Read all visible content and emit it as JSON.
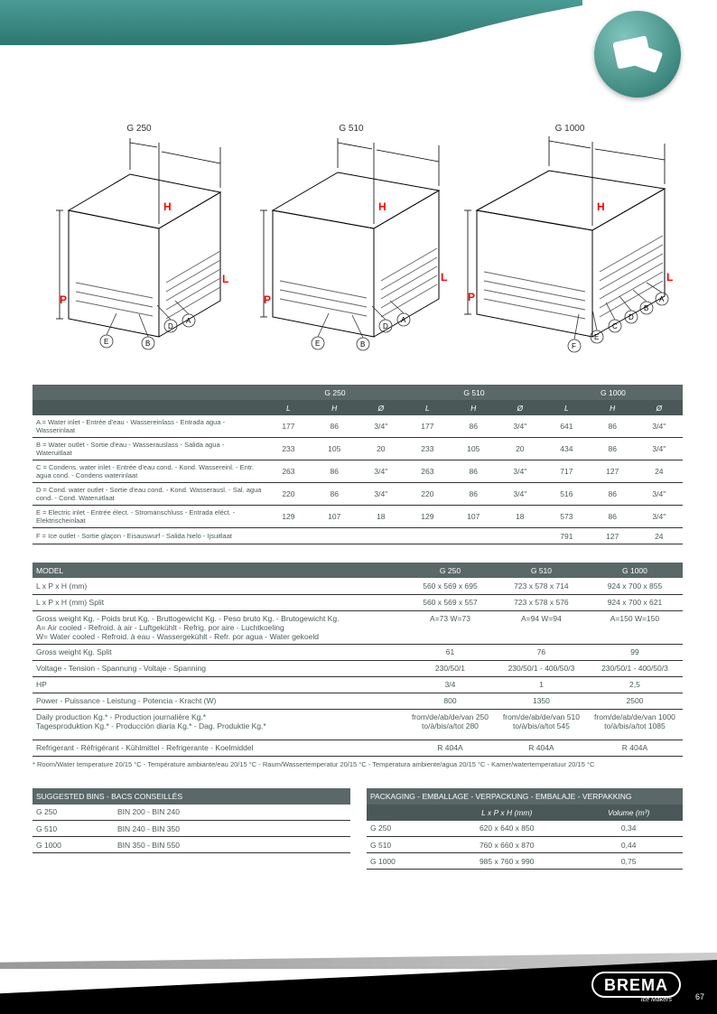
{
  "header": {
    "badge_alt": "ice"
  },
  "diagrams": {
    "labels": [
      "G 250",
      "G 510",
      "G 1000"
    ],
    "letters": {
      "H": "H",
      "L": "L",
      "P": "P"
    }
  },
  "table1": {
    "head_models": [
      "G 250",
      "G 510",
      "G 1000"
    ],
    "sub": [
      "L",
      "H",
      "Ø",
      "L",
      "H",
      "Ø",
      "L",
      "H",
      "Ø"
    ],
    "rows": [
      {
        "label": "A = Water inlet - Entrée d'eau - Wassereinlass - Entrada agua - Wasserinlaat",
        "v": [
          "177",
          "86",
          "3/4\"",
          "177",
          "86",
          "3/4\"",
          "641",
          "86",
          "3/4\""
        ]
      },
      {
        "label": "B = Water outlet - Sortie d'eau - Wasserauslass - Salida agua - Wateruitlaat",
        "v": [
          "233",
          "105",
          "20",
          "233",
          "105",
          "20",
          "434",
          "86",
          "3/4\""
        ]
      },
      {
        "label": "C = Condens. water inlet - Entrée d'eau cond. - Kond. Wassereinl. - Entr. agua cond. - Condens waterinlaat",
        "v": [
          "263",
          "86",
          "3/4\"",
          "263",
          "86",
          "3/4\"",
          "717",
          "127",
          "24"
        ]
      },
      {
        "label": "D = Cond. water outlet - Sortie d'eau cond. - Kond. Wasserausl. - Sal. agua cond. - Cond. Wateruitlaat",
        "v": [
          "220",
          "86",
          "3/4\"",
          "220",
          "86",
          "3/4\"",
          "516",
          "86",
          "3/4\""
        ]
      },
      {
        "label": "E = Electric inlet - Entrée élect. - Stromanschluss - Entrada eléct. - Elektrischeinlaat",
        "v": [
          "129",
          "107",
          "18",
          "129",
          "107",
          "18",
          "573",
          "86",
          "3/4\""
        ]
      },
      {
        "label": "F = Ice outlet - Sortie glaçon - Eisauswurf - Salida hielo - Ijsuitlaat",
        "v": [
          "",
          "",
          "",
          "",
          "",
          "",
          "791",
          "127",
          "24"
        ]
      }
    ]
  },
  "table2": {
    "head": [
      "MODEL",
      "G 250",
      "G 510",
      "G 1000"
    ],
    "rows": [
      {
        "l": "L x P x H (mm)",
        "a": "560 x 569 x 695",
        "b": "723 x 578 x 714",
        "c": "924 x 700 x 855"
      },
      {
        "l": "L x P x H (mm) Split",
        "a": "560 x 569 x 557",
        "b": "723 x 578 x 576",
        "c": "924 x 700 x 621"
      },
      {
        "tall": true,
        "l": "Gross weight Kg. - Poids brut Kg. - Bruttogewicht Kg. - Peso bruto Kg. - Brutogewicht Kg.\nA= Air cooled - Refroid. à air - Luftgekühlt - Refrig. por aire - Luchtkoeling\nW= Water cooled - Refroid. à eau - Wassergekühlt - Refr. por agua - Water gekoeld",
        "a": "A=73 W=73",
        "b": "A=94 W=94",
        "c": "A=150 W=150"
      },
      {
        "l": "Gross weight Kg. Split",
        "a": "61",
        "b": "76",
        "c": "99"
      },
      {
        "l": "Voltage - Tension - Spannung - Voltaje - Spanning",
        "a": "230/50/1",
        "b": "230/50/1 - 400/50/3",
        "c": "230/50/1 - 400/50/3"
      },
      {
        "l": "HP",
        "a": "3/4",
        "b": "1",
        "c": "2,5"
      },
      {
        "l": "Power - Puissance - Leistung - Potencia - Kracht (W)",
        "a": "800",
        "b": "1350",
        "c": "2500"
      },
      {
        "tall": true,
        "l": "Daily production Kg.* - Production journalière Kg.*\nTagesproduktion Kg.* - Producción diaria Kg.* - Dag. Produktie Kg.*",
        "a": "from/de/ab/de/van 250\nto/à/bis/a/tot 280",
        "b": "from/de/ab/de/van 510\nto/à/bis/a/tot 545",
        "c": "from/de/ab/de/van 1000\nto/à/bis/a/tot 1085"
      },
      {
        "l": "Refrigerant - Réfrigérant - Kühlmittel - Refrigerante - Koelmiddel",
        "a": "R 404A",
        "b": "R 404A",
        "c": "R 404A"
      }
    ],
    "footnote": "* Room/Water temperature 20/15 °C - Température ambiante/eau 20/15 °C - Raum/Wassertemperatur 20/15 °C - Temperatura ambiente/agua 20/15 °C - Kamer/watertemperatuur 20/15 °C"
  },
  "bins": {
    "head": "SUGGESTED BINS - BACS CONSEILLÉS",
    "rows": [
      [
        "G 250",
        "BIN 200 - BIN 240"
      ],
      [
        "G 510",
        "BIN 240 - BIN 350"
      ],
      [
        "G 1000",
        "BIN 350 - BIN 550"
      ]
    ]
  },
  "pack": {
    "head": "PACKAGING - EMBALLAGE - VERPACKUNG - EMBALAJE - VERPAKKING",
    "sub": [
      "L x P x H (mm)",
      "Volume (m³)"
    ],
    "rows": [
      [
        "G 250",
        "620 x 640 x 850",
        "0,34"
      ],
      [
        "G 510",
        "760 x 660 x 870",
        "0,44"
      ],
      [
        "G 1000",
        "985 x 760 x 990",
        "0,75"
      ]
    ]
  },
  "footer": {
    "logo": "BREMA",
    "sub": "Ice Makers",
    "page": "67"
  }
}
